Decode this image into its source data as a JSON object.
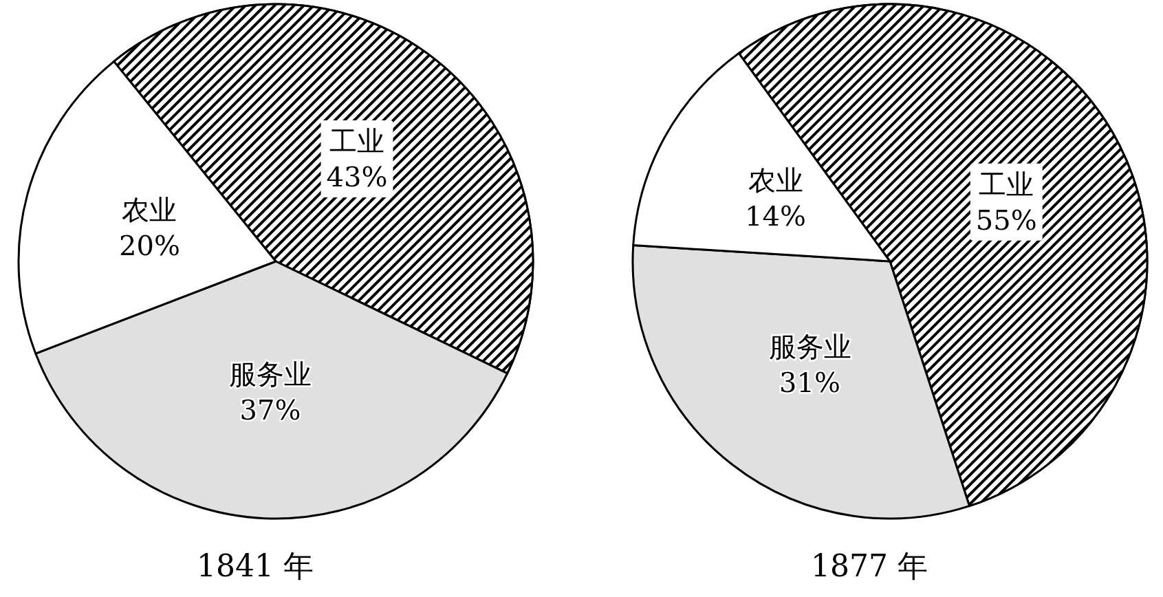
{
  "chart_data": [
    {
      "type": "pie",
      "title": "1841 年",
      "categories": [
        "工业",
        "服务业",
        "农业"
      ],
      "values": [
        43,
        37,
        20
      ],
      "value_labels": [
        "43%",
        "37%",
        "20%"
      ],
      "colors": [
        "#000000",
        "#e0e0e0",
        "#ffffff"
      ],
      "legend": false
    },
    {
      "type": "pie",
      "title": "1877 年",
      "categories": [
        "工业",
        "服务业",
        "农业"
      ],
      "values": [
        55,
        31,
        14
      ],
      "value_labels": [
        "55%",
        "31%",
        "14%"
      ],
      "colors": [
        "#000000",
        "#e0e0e0",
        "#ffffff"
      ],
      "legend": false
    }
  ]
}
